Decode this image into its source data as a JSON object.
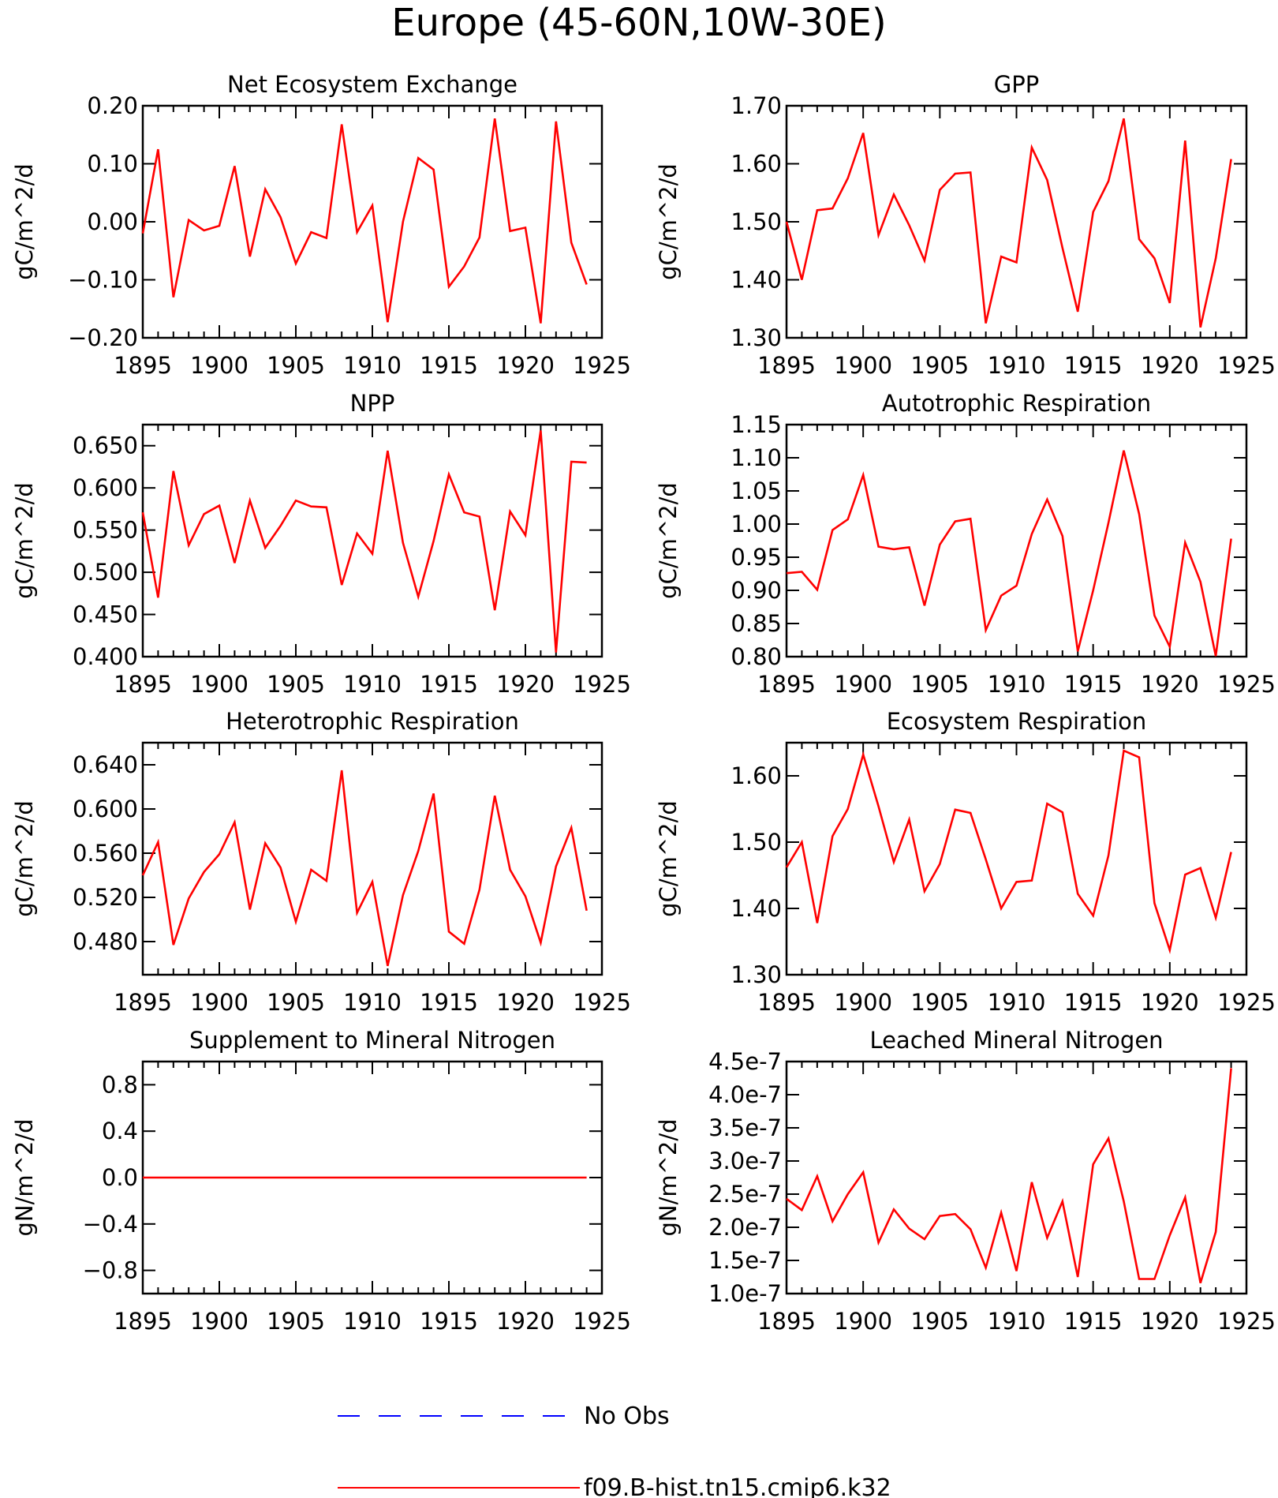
{
  "figure_title": "Europe (45-60N,10W-30E)",
  "legend": {
    "entries": [
      {
        "label": "No Obs",
        "color": "#0000ff",
        "style": "dashed"
      },
      {
        "label": "f09.B-hist.tn15.cmip6.k32",
        "color": "#ff0000",
        "style": "solid"
      }
    ]
  },
  "chart_data": [
    {
      "type": "line",
      "title": "Net Ecosystem Exchange",
      "ylabel": "gC/m^2/d",
      "xlim": [
        1895,
        1925
      ],
      "ylim": [
        -0.2,
        0.2
      ],
      "xticks": [
        "1895",
        "1900",
        "1905",
        "1910",
        "1915",
        "1920",
        "1925"
      ],
      "yticks": [
        "-0.20",
        "-0.10",
        "0.00",
        "0.10",
        "0.20"
      ],
      "x": [
        1895,
        1896,
        1897,
        1898,
        1899,
        1900,
        1901,
        1902,
        1903,
        1904,
        1905,
        1906,
        1907,
        1908,
        1909,
        1910,
        1911,
        1912,
        1913,
        1914,
        1915,
        1916,
        1917,
        1918,
        1919,
        1920,
        1921,
        1922,
        1923,
        1924
      ],
      "series": [
        {
          "color": "#ff0000",
          "values": [
            -0.02,
            0.125,
            -0.13,
            0.003,
            -0.015,
            -0.007,
            0.096,
            -0.06,
            0.056,
            0.008,
            -0.072,
            -0.018,
            -0.028,
            0.168,
            -0.018,
            0.028,
            -0.173,
            0.0,
            0.11,
            0.09,
            -0.112,
            -0.077,
            -0.027,
            0.178,
            -0.016,
            -0.01,
            -0.175,
            0.173,
            -0.036,
            -0.108
          ]
        }
      ]
    },
    {
      "type": "line",
      "title": "GPP",
      "ylabel": "gC/m^2/d",
      "xlim": [
        1895,
        1925
      ],
      "ylim": [
        1.3,
        1.7
      ],
      "xticks": [
        "1895",
        "1900",
        "1905",
        "1910",
        "1915",
        "1920",
        "1925"
      ],
      "yticks": [
        "1.30",
        "1.40",
        "1.50",
        "1.60",
        "1.70"
      ],
      "x": [
        1895,
        1896,
        1897,
        1898,
        1899,
        1900,
        1901,
        1902,
        1903,
        1904,
        1905,
        1906,
        1907,
        1908,
        1909,
        1910,
        1911,
        1912,
        1913,
        1914,
        1915,
        1916,
        1917,
        1918,
        1919,
        1920,
        1921,
        1922,
        1923,
        1924
      ],
      "series": [
        {
          "color": "#ff0000",
          "values": [
            1.5,
            1.4,
            1.52,
            1.523,
            1.575,
            1.653,
            1.477,
            1.547,
            1.494,
            1.433,
            1.555,
            1.583,
            1.585,
            1.325,
            1.44,
            1.43,
            1.628,
            1.572,
            1.455,
            1.345,
            1.517,
            1.57,
            1.678,
            1.47,
            1.437,
            1.36,
            1.64,
            1.318,
            1.437,
            1.608
          ]
        }
      ]
    },
    {
      "type": "line",
      "title": "NPP",
      "ylabel": "gC/m^2/d",
      "xlim": [
        1895,
        1925
      ],
      "ylim": [
        0.4,
        0.675
      ],
      "xticks": [
        "1895",
        "1900",
        "1905",
        "1910",
        "1915",
        "1920",
        "1925"
      ],
      "yticks": [
        "0.400",
        "0.450",
        "0.500",
        "0.550",
        "0.600",
        "0.650"
      ],
      "x": [
        1895,
        1896,
        1897,
        1898,
        1899,
        1900,
        1901,
        1902,
        1903,
        1904,
        1905,
        1906,
        1907,
        1908,
        1909,
        1910,
        1911,
        1912,
        1913,
        1914,
        1915,
        1916,
        1917,
        1918,
        1919,
        1920,
        1921,
        1922,
        1923,
        1924
      ],
      "series": [
        {
          "color": "#ff0000",
          "values": [
            0.571,
            0.47,
            0.62,
            0.532,
            0.569,
            0.579,
            0.511,
            0.585,
            0.529,
            0.555,
            0.585,
            0.578,
            0.577,
            0.485,
            0.546,
            0.522,
            0.644,
            0.535,
            0.471,
            0.537,
            0.616,
            0.571,
            0.566,
            0.455,
            0.572,
            0.544,
            0.668,
            0.405,
            0.631,
            0.63
          ]
        }
      ]
    },
    {
      "type": "line",
      "title": "Autotrophic Respiration",
      "ylabel": "gC/m^2/d",
      "xlim": [
        1895,
        1925
      ],
      "ylim": [
        0.8,
        1.15
      ],
      "xticks": [
        "1895",
        "1900",
        "1905",
        "1910",
        "1915",
        "1920",
        "1925"
      ],
      "yticks": [
        "0.80",
        "0.85",
        "0.90",
        "0.95",
        "1.00",
        "1.05",
        "1.10",
        "1.15"
      ],
      "x": [
        1895,
        1896,
        1897,
        1898,
        1899,
        1900,
        1901,
        1902,
        1903,
        1904,
        1905,
        1906,
        1907,
        1908,
        1909,
        1910,
        1911,
        1912,
        1913,
        1914,
        1915,
        1916,
        1917,
        1918,
        1919,
        1920,
        1921,
        1922,
        1923,
        1924
      ],
      "series": [
        {
          "color": "#ff0000",
          "values": [
            0.926,
            0.928,
            0.901,
            0.991,
            1.007,
            1.074,
            0.966,
            0.962,
            0.965,
            0.877,
            0.969,
            1.004,
            1.008,
            0.84,
            0.892,
            0.907,
            0.985,
            1.037,
            0.982,
            0.808,
            0.9,
            1.002,
            1.111,
            1.015,
            0.862,
            0.815,
            0.972,
            0.913,
            0.801,
            0.978
          ]
        }
      ]
    },
    {
      "type": "line",
      "title": "Heterotrophic Respiration",
      "ylabel": "gC/m^2/d",
      "xlim": [
        1895,
        1925
      ],
      "ylim": [
        0.45,
        0.66
      ],
      "xticks": [
        "1895",
        "1900",
        "1905",
        "1910",
        "1915",
        "1920",
        "1925"
      ],
      "yticks": [
        "0.480",
        "0.520",
        "0.560",
        "0.600",
        "0.640"
      ],
      "x": [
        1895,
        1896,
        1897,
        1898,
        1899,
        1900,
        1901,
        1902,
        1903,
        1904,
        1905,
        1906,
        1907,
        1908,
        1909,
        1910,
        1911,
        1912,
        1913,
        1914,
        1915,
        1916,
        1917,
        1918,
        1919,
        1920,
        1921,
        1922,
        1923,
        1924
      ],
      "series": [
        {
          "color": "#ff0000",
          "values": [
            0.54,
            0.57,
            0.477,
            0.519,
            0.543,
            0.559,
            0.588,
            0.509,
            0.569,
            0.547,
            0.498,
            0.545,
            0.535,
            0.635,
            0.506,
            0.534,
            0.458,
            0.522,
            0.562,
            0.614,
            0.489,
            0.478,
            0.527,
            0.612,
            0.545,
            0.521,
            0.479,
            0.548,
            0.583,
            0.508
          ]
        }
      ]
    },
    {
      "type": "line",
      "title": "Ecosystem Respiration",
      "ylabel": "gC/m^2/d",
      "xlim": [
        1895,
        1925
      ],
      "ylim": [
        1.3,
        1.65
      ],
      "xticks": [
        "1895",
        "1900",
        "1905",
        "1910",
        "1915",
        "1920",
        "1925"
      ],
      "yticks": [
        "1.30",
        "1.40",
        "1.50",
        "1.60"
      ],
      "x": [
        1895,
        1896,
        1897,
        1898,
        1899,
        1900,
        1901,
        1902,
        1903,
        1904,
        1905,
        1906,
        1907,
        1908,
        1909,
        1910,
        1911,
        1912,
        1913,
        1914,
        1915,
        1916,
        1917,
        1918,
        1919,
        1920,
        1921,
        1922,
        1923,
        1924
      ],
      "series": [
        {
          "color": "#ff0000",
          "values": [
            1.462,
            1.5,
            1.378,
            1.509,
            1.55,
            1.632,
            1.554,
            1.47,
            1.534,
            1.426,
            1.467,
            1.549,
            1.544,
            1.474,
            1.4,
            1.44,
            1.442,
            1.558,
            1.545,
            1.422,
            1.389,
            1.48,
            1.638,
            1.628,
            1.408,
            1.337,
            1.451,
            1.461,
            1.386,
            1.485
          ]
        }
      ]
    },
    {
      "type": "line",
      "title": "Supplement to Mineral Nitrogen",
      "ylabel": "gN/m^2/d",
      "xlim": [
        1895,
        1925
      ],
      "ylim": [
        -1.0,
        1.0
      ],
      "xticks": [
        "1895",
        "1900",
        "1905",
        "1910",
        "1915",
        "1920",
        "1925"
      ],
      "yticks": [
        "-0.8",
        "-0.4",
        "0.0",
        "0.4",
        "0.8"
      ],
      "x": [
        1895,
        1896,
        1897,
        1898,
        1899,
        1900,
        1901,
        1902,
        1903,
        1904,
        1905,
        1906,
        1907,
        1908,
        1909,
        1910,
        1911,
        1912,
        1913,
        1914,
        1915,
        1916,
        1917,
        1918,
        1919,
        1920,
        1921,
        1922,
        1923,
        1924
      ],
      "series": [
        {
          "color": "#ff0000",
          "values": [
            0,
            0,
            0,
            0,
            0,
            0,
            0,
            0,
            0,
            0,
            0,
            0,
            0,
            0,
            0,
            0,
            0,
            0,
            0,
            0,
            0,
            0,
            0,
            0,
            0,
            0,
            0,
            0,
            0,
            0
          ]
        }
      ]
    },
    {
      "type": "line",
      "title": "Leached Mineral Nitrogen",
      "ylabel": "gN/m^2/d",
      "xlim": [
        1895,
        1925
      ],
      "ylim": [
        1e-07,
        4.5e-07
      ],
      "xticks": [
        "1895",
        "1900",
        "1905",
        "1910",
        "1915",
        "1920",
        "1925"
      ],
      "yticks": [
        "1.0e-7",
        "1.5e-7",
        "2.0e-7",
        "2.5e-7",
        "3.0e-7",
        "3.5e-7",
        "4.0e-7",
        "4.5e-7"
      ],
      "x": [
        1895,
        1896,
        1897,
        1898,
        1899,
        1900,
        1901,
        1902,
        1903,
        1904,
        1905,
        1906,
        1907,
        1908,
        1909,
        1910,
        1911,
        1912,
        1913,
        1914,
        1915,
        1916,
        1917,
        1918,
        1919,
        1920,
        1921,
        1922,
        1923,
        1924
      ],
      "series": [
        {
          "color": "#ff0000",
          "values": [
            2.43e-07,
            2.26e-07,
            2.77e-07,
            2.09e-07,
            2.5e-07,
            2.83e-07,
            1.77e-07,
            2.27e-07,
            1.98e-07,
            1.82e-07,
            2.17e-07,
            2.2e-07,
            1.97e-07,
            1.39e-07,
            2.22e-07,
            1.34e-07,
            2.68e-07,
            1.84e-07,
            2.39e-07,
            1.25e-07,
            2.95e-07,
            3.34e-07,
            2.39e-07,
            1.22e-07,
            1.22e-07,
            1.88e-07,
            2.45e-07,
            1.16e-07,
            1.93e-07,
            4.4e-07
          ]
        }
      ]
    }
  ]
}
